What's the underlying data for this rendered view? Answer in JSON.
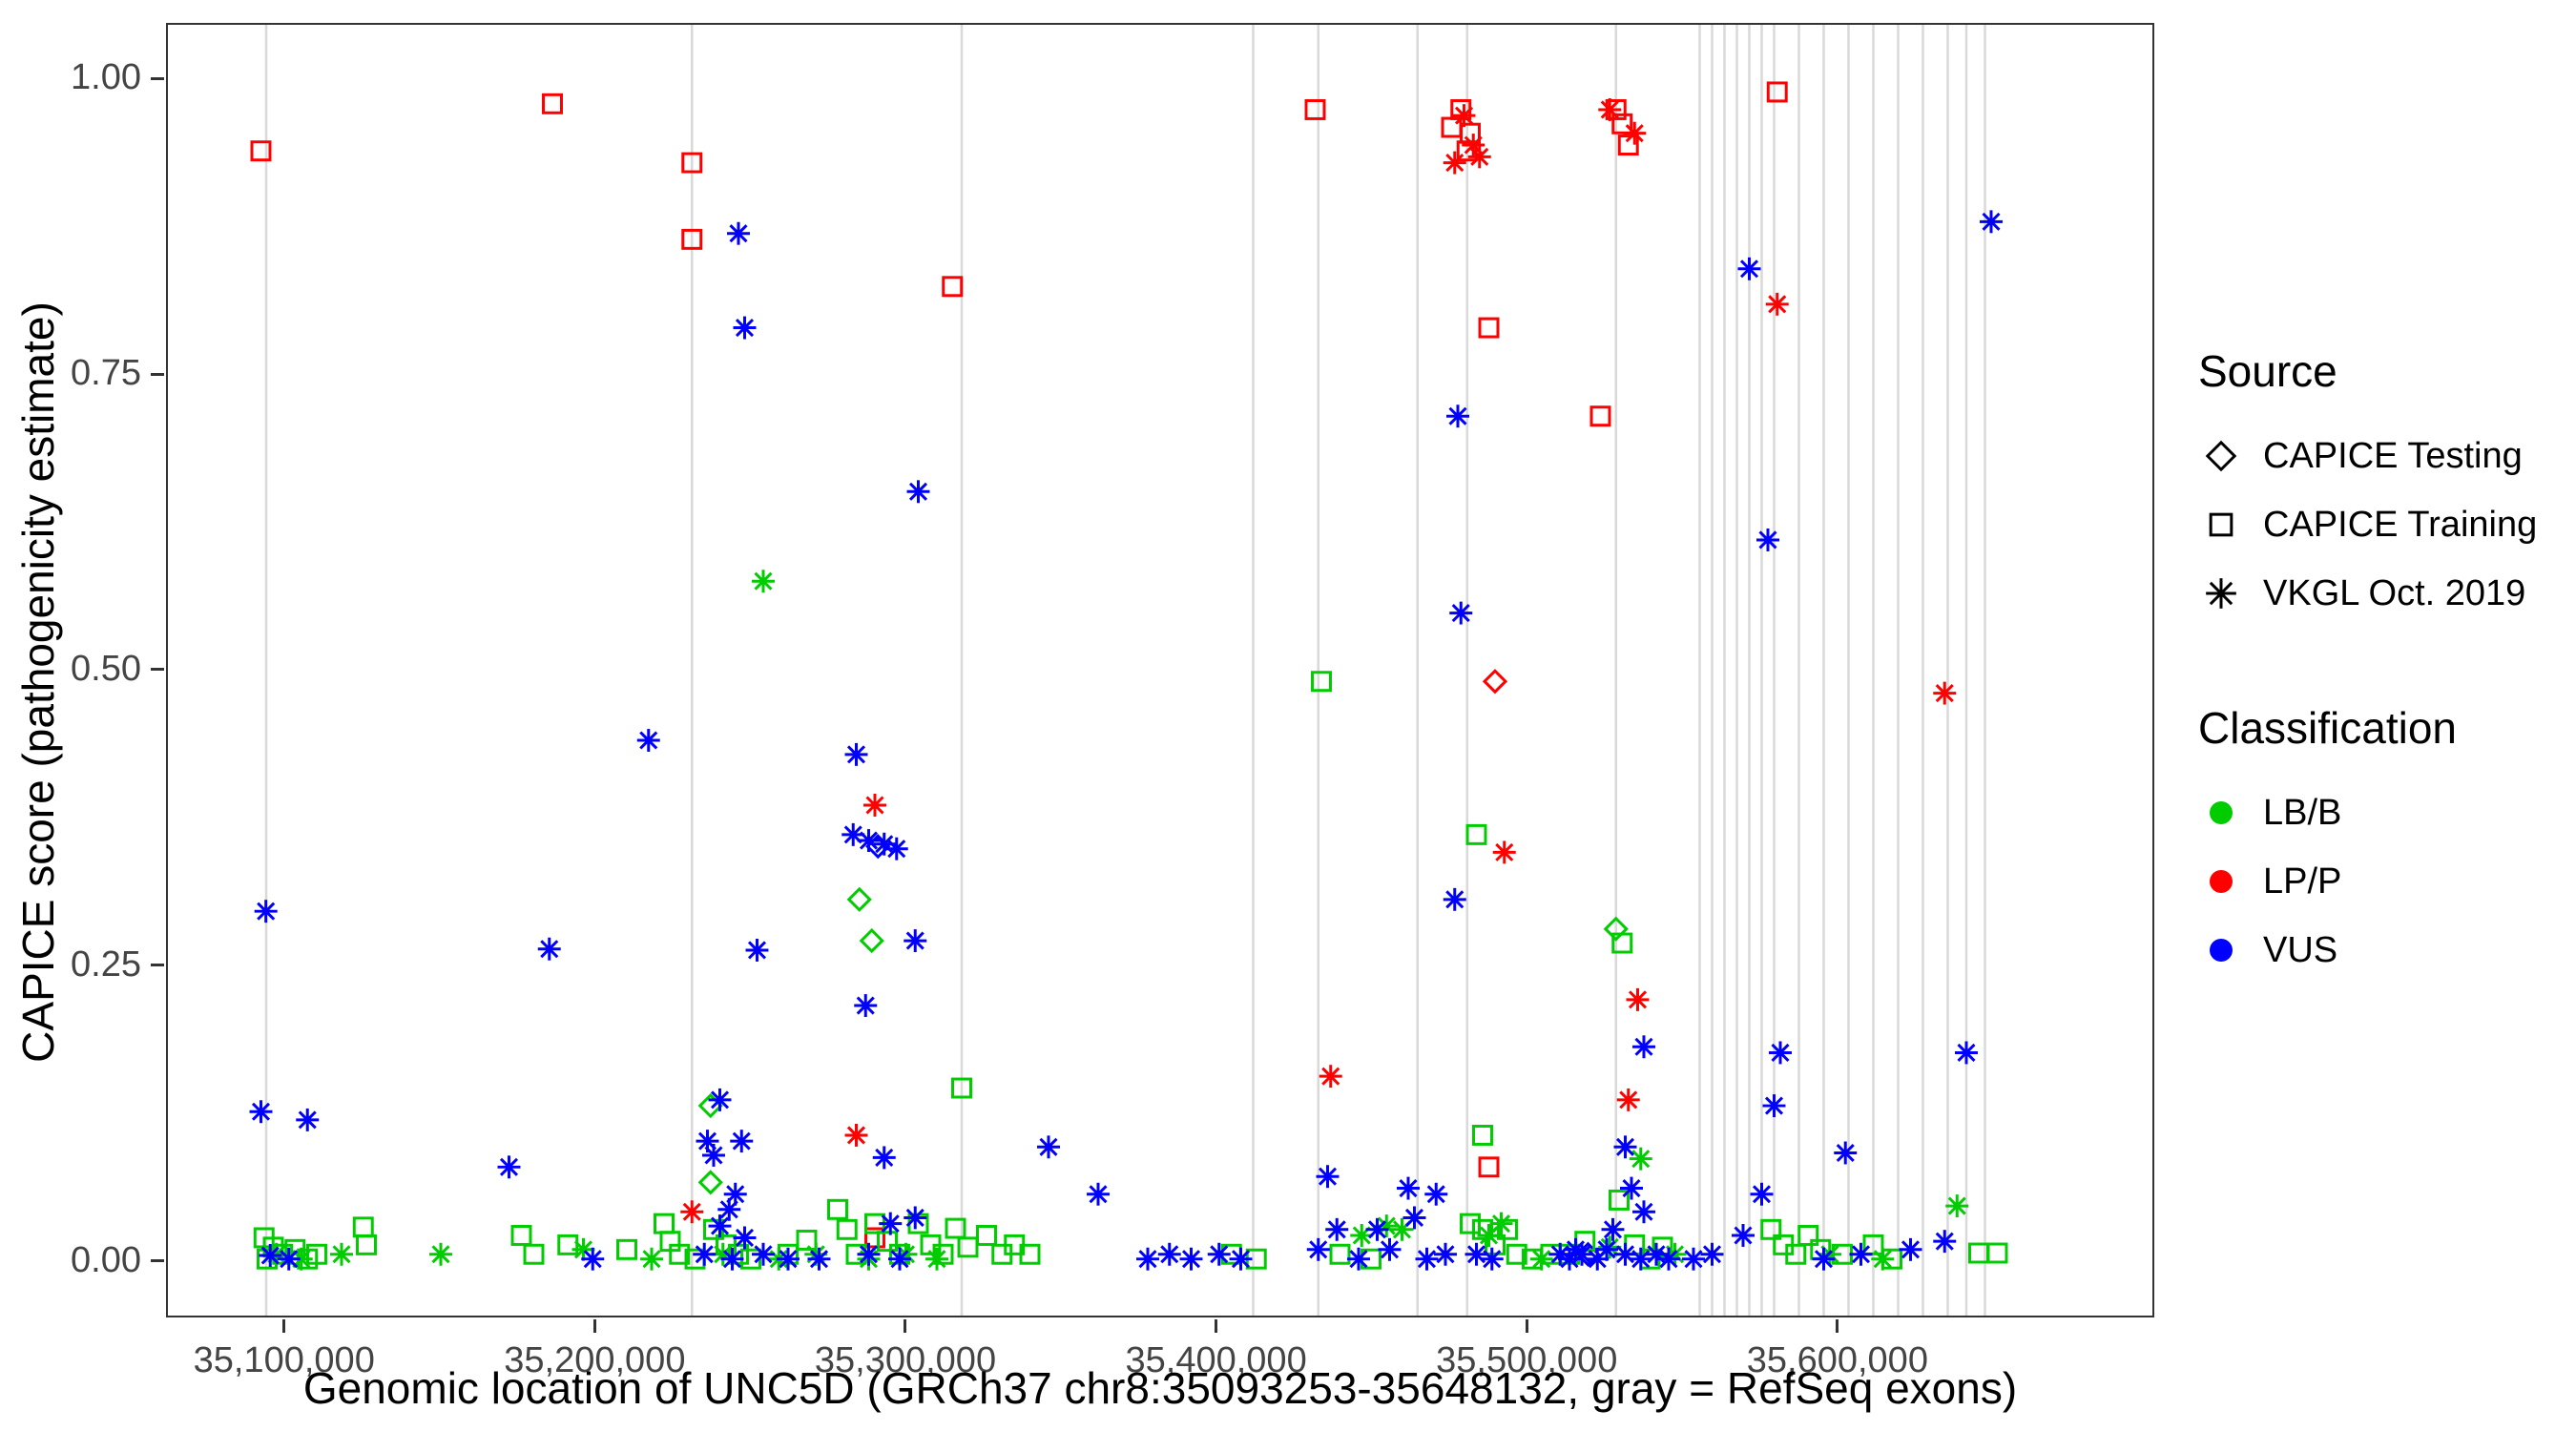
{
  "chart_data": {
    "type": "scatter",
    "title": "",
    "xlabel": "Genomic location of UNC5D (GRCh37 chr8:35093253-35648132, gray = RefSeq exons)",
    "ylabel": "CAPICE score (pathogenicity estimate)",
    "xlim": [
      35062000,
      35702000
    ],
    "ylim": [
      -0.048,
      1.047
    ],
    "grid": false,
    "legend_position": "right",
    "x_ticks": [
      {
        "value": 35100000,
        "label": "35,100,000"
      },
      {
        "value": 35200000,
        "label": "35,200,000"
      },
      {
        "value": 35300000,
        "label": "35,300,000"
      },
      {
        "value": 35400000,
        "label": "35,400,000"
      },
      {
        "value": 35500000,
        "label": "35,500,000"
      },
      {
        "value": 35600000,
        "label": "35,600,000"
      }
    ],
    "y_ticks": [
      {
        "value": 0.0,
        "label": "0.00"
      },
      {
        "value": 0.25,
        "label": "0.25"
      },
      {
        "value": 0.5,
        "label": "0.50"
      },
      {
        "value": 0.75,
        "label": "0.75"
      },
      {
        "value": 1.0,
        "label": "1.00"
      }
    ],
    "colors": {
      "LB/B": "#00CC00",
      "LP/P": "#FF0000",
      "VUS": "#0000FF",
      "exon": "#D9D9D9",
      "axis_text": "#444444",
      "panel_border": "#333333"
    },
    "exons_x": [
      35093700,
      35231000,
      35318000,
      35412000,
      35433000,
      35465000,
      35481000,
      35529000,
      35556000,
      35560000,
      35564000,
      35568000,
      35572000,
      35576000,
      35580000,
      35588000,
      35596000,
      35604000,
      35612000,
      35620000,
      35628000,
      35636000,
      35642000,
      35648000
    ],
    "series": [
      {
        "name": "CAPICE Testing / LP/P",
        "source": "CAPICE Testing",
        "classification": "LP/P",
        "shape": "diamond",
        "points": [
          [
            35490000,
            0.49
          ]
        ]
      },
      {
        "name": "CAPICE Testing / LB/B",
        "source": "CAPICE Testing",
        "classification": "LB/B",
        "shape": "diamond",
        "points": [
          [
            35237000,
            0.13
          ],
          [
            35237000,
            0.065
          ],
          [
            35285000,
            0.305
          ],
          [
            35289000,
            0.27
          ],
          [
            35529000,
            0.28
          ]
        ]
      },
      {
        "name": "CAPICE Testing / VUS",
        "source": "CAPICE Testing",
        "classification": "VUS",
        "shape": "diamond",
        "points": [
          [
            35291000,
            0.35
          ],
          [
            35520000,
            0.004
          ]
        ]
      },
      {
        "name": "CAPICE Training / LP/P",
        "source": "CAPICE Training",
        "classification": "LP/P",
        "shape": "square",
        "points": [
          [
            35092000,
            0.94
          ],
          [
            35186000,
            0.98
          ],
          [
            35231000,
            0.93
          ],
          [
            35231000,
            0.865
          ],
          [
            35315000,
            0.825
          ],
          [
            35432000,
            0.975
          ],
          [
            35476000,
            0.96
          ],
          [
            35479000,
            0.975
          ],
          [
            35482000,
            0.955
          ],
          [
            35481000,
            0.94
          ],
          [
            35488000,
            0.79
          ],
          [
            35524000,
            0.715
          ],
          [
            35529000,
            0.975
          ],
          [
            35531000,
            0.963
          ],
          [
            35533000,
            0.945
          ],
          [
            35581000,
            0.99
          ],
          [
            35488000,
            0.078
          ],
          [
            35290000,
            0.018
          ]
        ]
      },
      {
        "name": "CAPICE Training / LB/B",
        "source": "CAPICE Training",
        "classification": "LB/B",
        "shape": "square",
        "points": [
          [
            35093000,
            0.018
          ],
          [
            35096000,
            0.01
          ],
          [
            35099000,
            0.004
          ],
          [
            35094000,
            0.0
          ],
          [
            35103000,
            0.008
          ],
          [
            35107000,
            0.0
          ],
          [
            35110000,
            0.004
          ],
          [
            35125000,
            0.027
          ],
          [
            35126000,
            0.012
          ],
          [
            35176000,
            0.02
          ],
          [
            35180000,
            0.004
          ],
          [
            35191000,
            0.012
          ],
          [
            35210000,
            0.008
          ],
          [
            35222000,
            0.03
          ],
          [
            35224000,
            0.015
          ],
          [
            35227000,
            0.004
          ],
          [
            35232000,
            0.0
          ],
          [
            35238000,
            0.025
          ],
          [
            35242000,
            0.012
          ],
          [
            35246000,
            0.004
          ],
          [
            35250000,
            0.0
          ],
          [
            35262000,
            0.004
          ],
          [
            35268000,
            0.016
          ],
          [
            35278000,
            0.042
          ],
          [
            35281000,
            0.025
          ],
          [
            35284000,
            0.004
          ],
          [
            35290000,
            0.03
          ],
          [
            35294000,
            0.015
          ],
          [
            35298000,
            0.004
          ],
          [
            35304000,
            0.03
          ],
          [
            35308000,
            0.012
          ],
          [
            35312000,
            0.004
          ],
          [
            35316000,
            0.026
          ],
          [
            35320000,
            0.01
          ],
          [
            35326000,
            0.02
          ],
          [
            35331000,
            0.004
          ],
          [
            35335000,
            0.012
          ],
          [
            35340000,
            0.004
          ],
          [
            35318000,
            0.145
          ],
          [
            35405000,
            0.004
          ],
          [
            35413000,
            0.0
          ],
          [
            35434000,
            0.49
          ],
          [
            35440000,
            0.004
          ],
          [
            35450000,
            0.0
          ],
          [
            35484000,
            0.36
          ],
          [
            35486000,
            0.105
          ],
          [
            35482000,
            0.03
          ],
          [
            35486000,
            0.025
          ],
          [
            35490000,
            0.012
          ],
          [
            35494000,
            0.025
          ],
          [
            35497000,
            0.004
          ],
          [
            35502000,
            0.0
          ],
          [
            35508000,
            0.004
          ],
          [
            35531000,
            0.268
          ],
          [
            35530000,
            0.05
          ],
          [
            35514000,
            0.004
          ],
          [
            35519000,
            0.015
          ],
          [
            35535000,
            0.012
          ],
          [
            35540000,
            0.0
          ],
          [
            35544000,
            0.01
          ],
          [
            35579000,
            0.025
          ],
          [
            35583000,
            0.012
          ],
          [
            35587000,
            0.004
          ],
          [
            35591000,
            0.02
          ],
          [
            35595000,
            0.008
          ],
          [
            35602000,
            0.004
          ],
          [
            35612000,
            0.012
          ],
          [
            35618000,
            0.0
          ],
          [
            35646000,
            0.005
          ],
          [
            35652000,
            0.005
          ]
        ]
      },
      {
        "name": "VKGL Oct. 2019 / LP/P",
        "source": "VKGL Oct. 2019",
        "classification": "LP/P",
        "shape": "asterisk",
        "points": [
          [
            35477000,
            0.93
          ],
          [
            35480000,
            0.97
          ],
          [
            35483000,
            0.945
          ],
          [
            35485000,
            0.935
          ],
          [
            35527000,
            0.975
          ],
          [
            35535000,
            0.955
          ],
          [
            35581000,
            0.81
          ],
          [
            35635000,
            0.48
          ],
          [
            35290000,
            0.385
          ],
          [
            35437000,
            0.155
          ],
          [
            35493000,
            0.345
          ],
          [
            35536000,
            0.22
          ],
          [
            35533000,
            0.135
          ],
          [
            35284000,
            0.105
          ],
          [
            35231000,
            0.04
          ]
        ]
      },
      {
        "name": "VKGL Oct. 2019 / LB/B",
        "source": "VKGL Oct. 2019",
        "classification": "LB/B",
        "shape": "asterisk",
        "points": [
          [
            35254000,
            0.575
          ],
          [
            35537000,
            0.085
          ],
          [
            35196000,
            0.008
          ],
          [
            35150000,
            0.004
          ],
          [
            35218000,
            0.0
          ],
          [
            35241000,
            0.004
          ],
          [
            35259000,
            0.0
          ],
          [
            35271000,
            0.004
          ],
          [
            35288000,
            0.0
          ],
          [
            35300000,
            0.004
          ],
          [
            35310000,
            0.0
          ],
          [
            35447000,
            0.02
          ],
          [
            35455000,
            0.028
          ],
          [
            35460000,
            0.025
          ],
          [
            35488000,
            0.02
          ],
          [
            35492000,
            0.03
          ],
          [
            35505000,
            0.0
          ],
          [
            35527000,
            0.01
          ],
          [
            35548000,
            0.004
          ],
          [
            35598000,
            0.004
          ],
          [
            35615000,
            0.0
          ],
          [
            35639000,
            0.045
          ],
          [
            35118000,
            0.004
          ],
          [
            35097000,
            0.004
          ],
          [
            35105000,
            0.0
          ]
        ]
      },
      {
        "name": "VKGL Oct. 2019 / VUS",
        "source": "VKGL Oct. 2019",
        "classification": "VUS",
        "shape": "asterisk",
        "points": [
          [
            35093600,
            0.295
          ],
          [
            35092000,
            0.125
          ],
          [
            35107000,
            0.118
          ],
          [
            35095000,
            0.003
          ],
          [
            35101000,
            0.0
          ],
          [
            35172000,
            0.078
          ],
          [
            35185000,
            0.263
          ],
          [
            35199000,
            0.0
          ],
          [
            35217000,
            0.44
          ],
          [
            35246000,
            0.87
          ],
          [
            35248000,
            0.79
          ],
          [
            35252000,
            0.262
          ],
          [
            35240000,
            0.135
          ],
          [
            35236000,
            0.1
          ],
          [
            35247000,
            0.1
          ],
          [
            35238000,
            0.088
          ],
          [
            35245000,
            0.055
          ],
          [
            35243000,
            0.042
          ],
          [
            35240000,
            0.028
          ],
          [
            35248000,
            0.018
          ],
          [
            35235000,
            0.004
          ],
          [
            35244000,
            0.0
          ],
          [
            35254000,
            0.004
          ],
          [
            35262000,
            0.0
          ],
          [
            35284000,
            0.428
          ],
          [
            35283000,
            0.36
          ],
          [
            35288000,
            0.355
          ],
          [
            35293000,
            0.352
          ],
          [
            35297000,
            0.348
          ],
          [
            35287000,
            0.215
          ],
          [
            35303000,
            0.27
          ],
          [
            35304000,
            0.651
          ],
          [
            35293000,
            0.086
          ],
          [
            35295000,
            0.03
          ],
          [
            35272000,
            0.0
          ],
          [
            35288000,
            0.004
          ],
          [
            35303000,
            0.035
          ],
          [
            35298000,
            0.0
          ],
          [
            35346000,
            0.095
          ],
          [
            35362000,
            0.055
          ],
          [
            35378000,
            0.0
          ],
          [
            35385000,
            0.004
          ],
          [
            35392000,
            0.0
          ],
          [
            35401000,
            0.004
          ],
          [
            35408000,
            0.0
          ],
          [
            35436000,
            0.07
          ],
          [
            35439000,
            0.025
          ],
          [
            35433000,
            0.008
          ],
          [
            35446000,
            0.0
          ],
          [
            35452000,
            0.025
          ],
          [
            35456000,
            0.008
          ],
          [
            35462000,
            0.06
          ],
          [
            35464000,
            0.035
          ],
          [
            35478000,
            0.715
          ],
          [
            35479000,
            0.548
          ],
          [
            35477000,
            0.305
          ],
          [
            35471000,
            0.055
          ],
          [
            35468000,
            0.0
          ],
          [
            35474000,
            0.004
          ],
          [
            35484000,
            0.004
          ],
          [
            35489000,
            0.0
          ],
          [
            35532000,
            0.095
          ],
          [
            35534000,
            0.06
          ],
          [
            35538000,
            0.04
          ],
          [
            35528000,
            0.025
          ],
          [
            35538000,
            0.18
          ],
          [
            35516000,
            0.008
          ],
          [
            35511000,
            0.004
          ],
          [
            35514000,
            0.0
          ],
          [
            35518000,
            0.004
          ],
          [
            35523000,
            0.0
          ],
          [
            35526000,
            0.008
          ],
          [
            35532000,
            0.004
          ],
          [
            35537000,
            0.0
          ],
          [
            35542000,
            0.004
          ],
          [
            35546000,
            0.0
          ],
          [
            35572000,
            0.84
          ],
          [
            35578000,
            0.61
          ],
          [
            35582000,
            0.175
          ],
          [
            35580000,
            0.13
          ],
          [
            35576000,
            0.055
          ],
          [
            35570000,
            0.02
          ],
          [
            35560000,
            0.004
          ],
          [
            35554000,
            0.0
          ],
          [
            35603000,
            0.09
          ],
          [
            35596000,
            0.0
          ],
          [
            35608000,
            0.004
          ],
          [
            35624000,
            0.008
          ],
          [
            35642000,
            0.175
          ],
          [
            35635000,
            0.015
          ],
          [
            35650000,
            0.88
          ]
        ]
      }
    ]
  },
  "legend": {
    "source_title": "Source",
    "source_items": [
      {
        "label": "CAPICE Testing",
        "shape": "diamond"
      },
      {
        "label": "CAPICE Training",
        "shape": "square"
      },
      {
        "label": "VKGL Oct. 2019",
        "shape": "asterisk"
      }
    ],
    "classification_title": "Classification",
    "classification_items": [
      {
        "label": "LB/B"
      },
      {
        "label": "LP/P"
      },
      {
        "label": "VUS"
      }
    ]
  }
}
